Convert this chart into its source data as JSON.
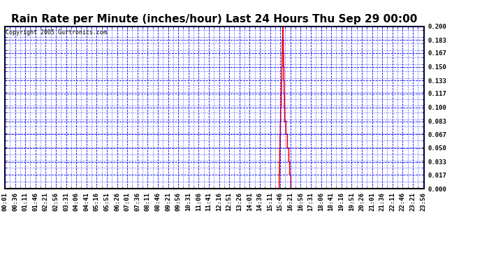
{
  "title": "Rain Rate per Minute (inches/hour) Last 24 Hours Thu Sep 29 00:00",
  "copyright": "Copyright 2005 Gurtronics.com",
  "ylabel_values": [
    0.0,
    0.017,
    0.033,
    0.05,
    0.067,
    0.083,
    0.1,
    0.117,
    0.133,
    0.15,
    0.167,
    0.183,
    0.2
  ],
  "ymin": 0.0,
  "ymax": 0.2,
  "x_tick_labels": [
    "00:01",
    "00:36",
    "01:11",
    "01:46",
    "02:21",
    "02:56",
    "03:31",
    "04:06",
    "04:41",
    "05:16",
    "05:51",
    "06:26",
    "07:01",
    "07:36",
    "08:11",
    "08:46",
    "09:21",
    "09:56",
    "10:31",
    "11:06",
    "11:41",
    "12:16",
    "12:51",
    "13:26",
    "14:01",
    "14:36",
    "15:11",
    "15:46",
    "16:21",
    "16:56",
    "17:31",
    "18:06",
    "18:41",
    "19:16",
    "19:51",
    "20:26",
    "21:01",
    "21:36",
    "22:11",
    "22:46",
    "23:21",
    "23:56"
  ],
  "line_color": "#ff0000",
  "grid_color": "#0000ff",
  "background_color": "#ffffff",
  "title_fontsize": 11,
  "copyright_fontsize": 6,
  "tick_label_fontsize": 6.5,
  "n_minutes": 1440,
  "minutes_per_tick": 35,
  "spike_values": [
    [
      940,
      0.0
    ],
    [
      941,
      0.0
    ],
    [
      942,
      0.017
    ],
    [
      943,
      0.033
    ],
    [
      944,
      0.05
    ],
    [
      945,
      0.067
    ],
    [
      946,
      0.083
    ],
    [
      947,
      0.1
    ],
    [
      948,
      0.1
    ],
    [
      949,
      0.117
    ],
    [
      950,
      0.133
    ],
    [
      951,
      0.15
    ],
    [
      952,
      0.167
    ],
    [
      953,
      0.183
    ],
    [
      954,
      0.2
    ],
    [
      955,
      0.183
    ],
    [
      956,
      0.167
    ],
    [
      957,
      0.15
    ],
    [
      958,
      0.133
    ],
    [
      959,
      0.117
    ],
    [
      960,
      0.1
    ],
    [
      961,
      0.083
    ],
    [
      962,
      0.083
    ],
    [
      963,
      0.083
    ],
    [
      964,
      0.083
    ],
    [
      965,
      0.067
    ],
    [
      966,
      0.067
    ],
    [
      967,
      0.067
    ],
    [
      968,
      0.067
    ],
    [
      969,
      0.067
    ],
    [
      970,
      0.05
    ],
    [
      971,
      0.05
    ],
    [
      972,
      0.05
    ],
    [
      973,
      0.05
    ],
    [
      974,
      0.05
    ],
    [
      975,
      0.033
    ],
    [
      976,
      0.033
    ],
    [
      977,
      0.033
    ],
    [
      978,
      0.017
    ],
    [
      979,
      0.017
    ],
    [
      980,
      0.017
    ],
    [
      981,
      0.017
    ],
    [
      982,
      0.0
    ],
    [
      983,
      0.0
    ]
  ]
}
